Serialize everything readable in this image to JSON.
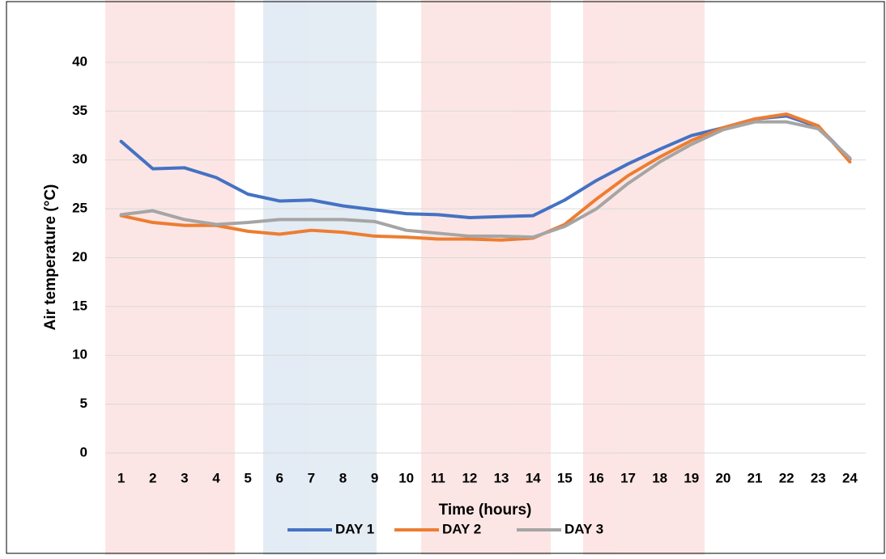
{
  "chart_data": {
    "type": "line",
    "x_label": "Time (hours)",
    "y_label": "Air temperature (°C)",
    "categories": [
      "1",
      "2",
      "3",
      "4",
      "5",
      "6",
      "7",
      "8",
      "9",
      "10",
      "11",
      "12",
      "13",
      "14",
      "15",
      "16",
      "17",
      "18",
      "19",
      "20",
      "21",
      "22",
      "23",
      "24"
    ],
    "series": [
      {
        "name": "DAY 1",
        "color": "#4472c4",
        "values": [
          31.9,
          29.1,
          29.2,
          28.2,
          26.5,
          25.8,
          25.9,
          25.3,
          24.9,
          24.5,
          24.4,
          24.1,
          24.2,
          24.3,
          25.9,
          27.9,
          29.6,
          31.1,
          32.5,
          33.3,
          34.2,
          34.5,
          33.4,
          30.1
        ]
      },
      {
        "name": "DAY 2",
        "color": "#ed7d31",
        "values": [
          24.3,
          23.6,
          23.3,
          23.3,
          22.7,
          22.4,
          22.8,
          22.6,
          22.2,
          22.1,
          21.9,
          21.9,
          21.8,
          22.0,
          23.4,
          26.0,
          28.4,
          30.3,
          32.0,
          33.3,
          34.2,
          34.7,
          33.5,
          29.8
        ]
      },
      {
        "name": "DAY 3",
        "color": "#a5a5a5",
        "values": [
          24.4,
          24.8,
          23.9,
          23.4,
          23.6,
          23.9,
          23.9,
          23.9,
          23.7,
          22.8,
          22.5,
          22.2,
          22.2,
          22.1,
          23.2,
          25.0,
          27.6,
          29.8,
          31.6,
          33.1,
          33.9,
          33.9,
          33.2,
          30.2
        ]
      }
    ],
    "ylim": [
      0,
      40
    ],
    "yticks": [
      0,
      5,
      10,
      15,
      20,
      25,
      30,
      35,
      40
    ],
    "grid": true,
    "legend": "bottom"
  }
}
